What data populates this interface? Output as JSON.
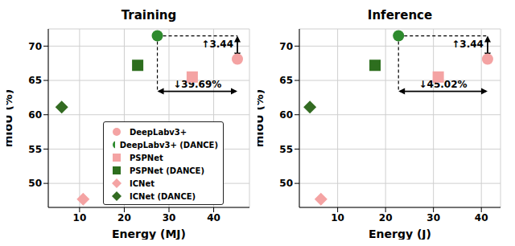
{
  "chart_data": [
    {
      "type": "scatter",
      "title": "Training",
      "x_label": "Energy (MJ)",
      "y_label": "mIoU (%)",
      "xlim": [
        3,
        48
      ],
      "xticks": [
        10,
        20,
        30,
        40
      ],
      "ylim": [
        46.5,
        72.5
      ],
      "yticks": [
        50,
        55,
        60,
        65,
        70
      ],
      "grid": true,
      "legend": "lower center",
      "annotations": [
        "↑3.44",
        "↓39.69%"
      ],
      "series": [
        {
          "name": "DeepLabv3+",
          "color": "#f4a3a3",
          "marker": "circle",
          "values": [
            [
              45.3,
              68.1
            ]
          ]
        },
        {
          "name": "DeepLabv3+ (DANCE)",
          "color": "#2e8b2e",
          "marker": "circle",
          "values": [
            [
              27.4,
              71.5
            ]
          ]
        },
        {
          "name": "PSPNet",
          "color": "#f4a3a3",
          "marker": "square",
          "values": [
            [
              35.2,
              65.5
            ]
          ]
        },
        {
          "name": "PSPNet (DANCE)",
          "color": "#2d6e1e",
          "marker": "square",
          "values": [
            [
              23.0,
              67.2
            ]
          ]
        },
        {
          "name": "ICNet",
          "color": "#f4a3a3",
          "marker": "diamond",
          "values": [
            [
              10.8,
              47.7
            ]
          ]
        },
        {
          "name": "ICNet (DANCE)",
          "color": "#336b22",
          "marker": "diamond",
          "values": [
            [
              6.0,
              61.1
            ]
          ]
        }
      ]
    },
    {
      "type": "scatter",
      "title": "Inference",
      "x_label": "Energy (J)",
      "y_label": "mIoU (%)",
      "xlim": [
        2,
        44
      ],
      "xticks": [
        10,
        20,
        30,
        40
      ],
      "ylim": [
        46.5,
        72.5
      ],
      "yticks": [
        50,
        55,
        60,
        65,
        70
      ],
      "grid": true,
      "annotations": [
        "↑3.44",
        "↓45.02%"
      ],
      "series": [
        {
          "name": "DeepLabv3+",
          "color": "#f4a3a3",
          "marker": "circle",
          "values": [
            [
              41.3,
              68.1
            ]
          ]
        },
        {
          "name": "DeepLabv3+ (DANCE)",
          "color": "#2e8b2e",
          "marker": "circle",
          "values": [
            [
              22.7,
              71.5
            ]
          ]
        },
        {
          "name": "PSPNet",
          "color": "#f4a3a3",
          "marker": "square",
          "values": [
            [
              31.0,
              65.5
            ]
          ]
        },
        {
          "name": "PSPNet (DANCE)",
          "color": "#2d6e1e",
          "marker": "square",
          "values": [
            [
              17.8,
              67.2
            ]
          ]
        },
        {
          "name": "ICNet",
          "color": "#f4a3a3",
          "marker": "diamond",
          "values": [
            [
              6.5,
              47.7
            ]
          ]
        },
        {
          "name": "ICNet (DANCE)",
          "color": "#336b22",
          "marker": "diamond",
          "values": [
            [
              4.2,
              61.1
            ]
          ]
        }
      ]
    }
  ]
}
